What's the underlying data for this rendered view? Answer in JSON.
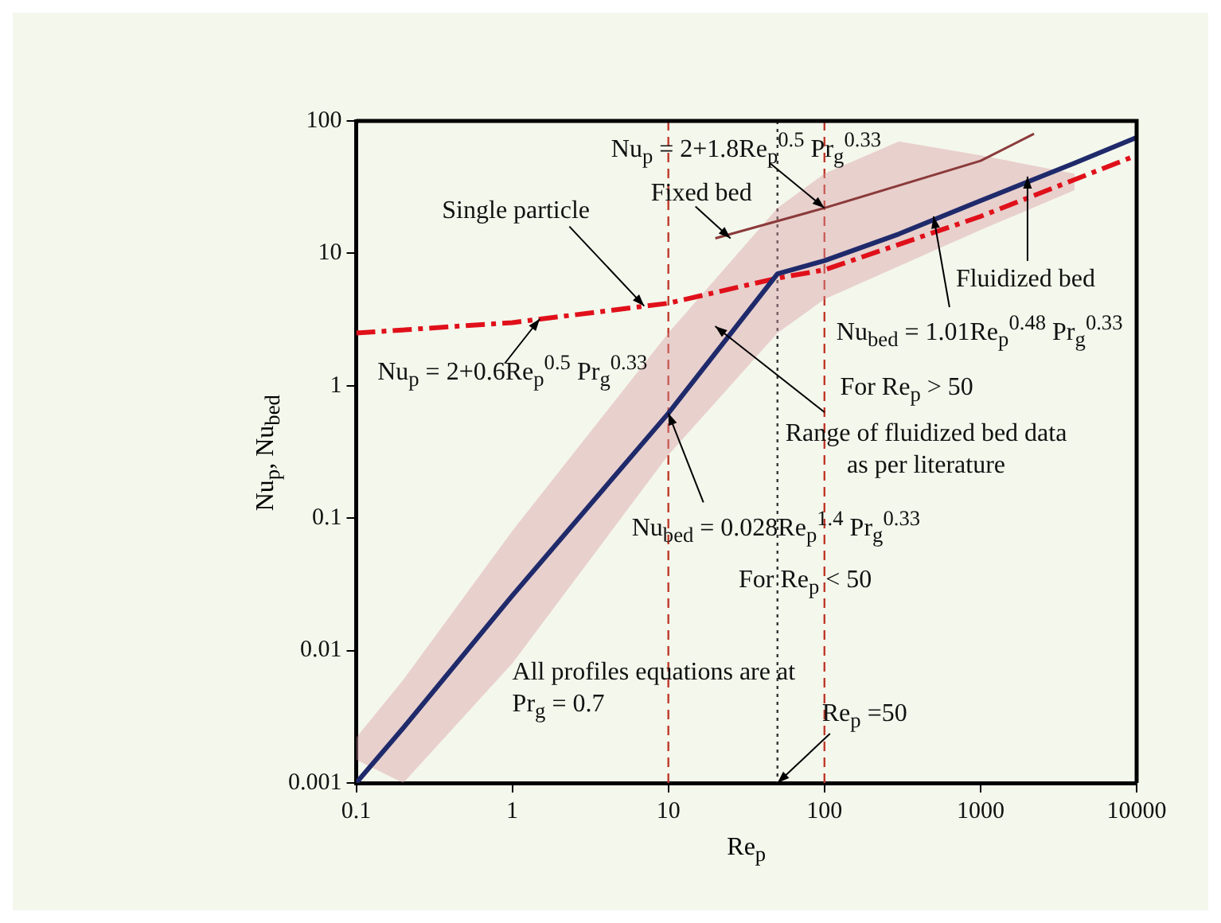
{
  "chart_data": {
    "type": "line",
    "log": "xy",
    "xlim": [
      0.1,
      10000
    ],
    "ylim": [
      0.001,
      100
    ],
    "xticks": [
      0.1,
      1,
      10,
      100,
      1000,
      10000
    ],
    "yticks": [
      0.001,
      0.01,
      0.1,
      1,
      10,
      100
    ],
    "grid": false,
    "legend": false,
    "xlabel": "Re$_{p}$",
    "ylabel": "Nu$_{p}$, Nu$_{bed}$",
    "series": [
      {
        "color": "#1f2a6b",
        "line_style": "solid",
        "x": [
          0.1,
          0.2,
          1,
          10,
          50,
          100,
          300,
          1000,
          4000,
          10000
        ],
        "values": [
          0.001,
          0.0026,
          0.026,
          0.62,
          7,
          8.8,
          14,
          25,
          48,
          75
        ],
        "lower": [
          0.0015,
          0.001,
          0.008,
          0.3,
          2.5,
          4.5,
          8,
          15,
          30,
          null
        ],
        "upper": [
          0.0022,
          0.006,
          0.08,
          2.5,
          22,
          40,
          70,
          55,
          40,
          null
        ]
      },
      {
        "color": "#e0101a",
        "line_style": "dashed",
        "x": [
          0.1,
          1,
          10,
          50,
          100,
          1000,
          10000
        ],
        "values": [
          2.5,
          3,
          4.2,
          6.5,
          7.5,
          19,
          55
        ]
      },
      {
        "color": "#8b3a3a",
        "line_style": "solid",
        "x": [
          20,
          100,
          1000,
          2200
        ],
        "values": [
          13,
          22,
          50,
          80
        ]
      }
    ],
    "ref_lines": [
      {
        "axis": "x",
        "value": 10,
        "color": "#c0392b",
        "line_style": "dashed"
      },
      {
        "axis": "x",
        "value": 100,
        "color": "#c0392b",
        "line_style": "dashed"
      },
      {
        "axis": "x",
        "value": 50,
        "color": "#333333",
        "line_style": "dotted"
      }
    ],
    "annotations": [
      {
        "text": "Nu$_{p}$ = 2+1.8Re$_{p}$$^{0.5}$ Pr$_{g}$$^{0.33}$",
        "x": 100,
        "y": 22
      },
      {
        "text": "Fixed bed",
        "x": 25,
        "y": 13
      },
      {
        "text": "Single particle",
        "x": 7,
        "y": 4
      },
      {
        "text": "Nu$_{p}$ = 2+0.6Re$_{p}$$^{0.5}$ Pr$_{g}$$^{0.33}$",
        "x": 1.5,
        "y": 3.2
      },
      {
        "text": "Fluidized bed",
        "x": 2000,
        "y": 38
      },
      {
        "text": "Nu$_{bed}$ = 1.01Re$_{p}$$^{0.48}$ Pr$_{g}$$^{0.33}$",
        "x": 500,
        "y": 19
      },
      "For Re$_{p}$ > 50",
      "Range of fluidized bed data\nas per literature",
      {
        "text": "Nu$_{bed}$ = 0.028Re$_{p}$$^{1.4}$ Pr$_{g}$$^{0.33}$",
        "x": 10,
        "y": 0.62
      },
      "For Re$_{p}$ < 50",
      "All profiles equations are at\nPr$_{g}$ = 0.7",
      {
        "text": "Re$_{p}$ =50",
        "x": 50,
        "y": 0.001
      }
    ]
  }
}
